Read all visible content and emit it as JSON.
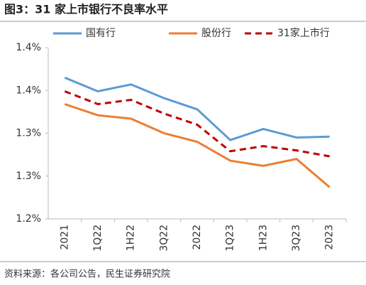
{
  "title": "图3：31 家上市银行不良率水平",
  "source": "资料来源：各公司公告，民生证券研究院",
  "chart_data": {
    "type": "line",
    "categories": [
      "2021",
      "1Q22",
      "1H22",
      "3Q22",
      "2022",
      "1Q23",
      "1H23",
      "3Q23",
      "2023"
    ],
    "series": [
      {
        "name": "国有行",
        "color": "#5b9bd5",
        "dash": false,
        "values": [
          1.365,
          1.349,
          1.357,
          1.341,
          1.328,
          1.292,
          1.305,
          1.295,
          1.296
        ]
      },
      {
        "name": "股份行",
        "color": "#ed7d31",
        "dash": false,
        "values": [
          1.334,
          1.321,
          1.317,
          1.3,
          1.29,
          1.268,
          1.262,
          1.27,
          1.237
        ]
      },
      {
        "name": "31家上市行",
        "color": "#c00000",
        "dash": true,
        "values": [
          1.349,
          1.334,
          1.339,
          1.323,
          1.31,
          1.279,
          1.285,
          1.28,
          1.273
        ]
      }
    ],
    "ylim": [
      1.2,
      1.4
    ],
    "yticks": [
      {
        "value": 1.2,
        "label": "1.2%"
      },
      {
        "value": 1.25,
        "label": "1.3%"
      },
      {
        "value": 1.3,
        "label": "1.3%"
      },
      {
        "value": 1.35,
        "label": "1.4%"
      },
      {
        "value": 1.4,
        "label": "1.4%"
      }
    ],
    "grid": false
  }
}
